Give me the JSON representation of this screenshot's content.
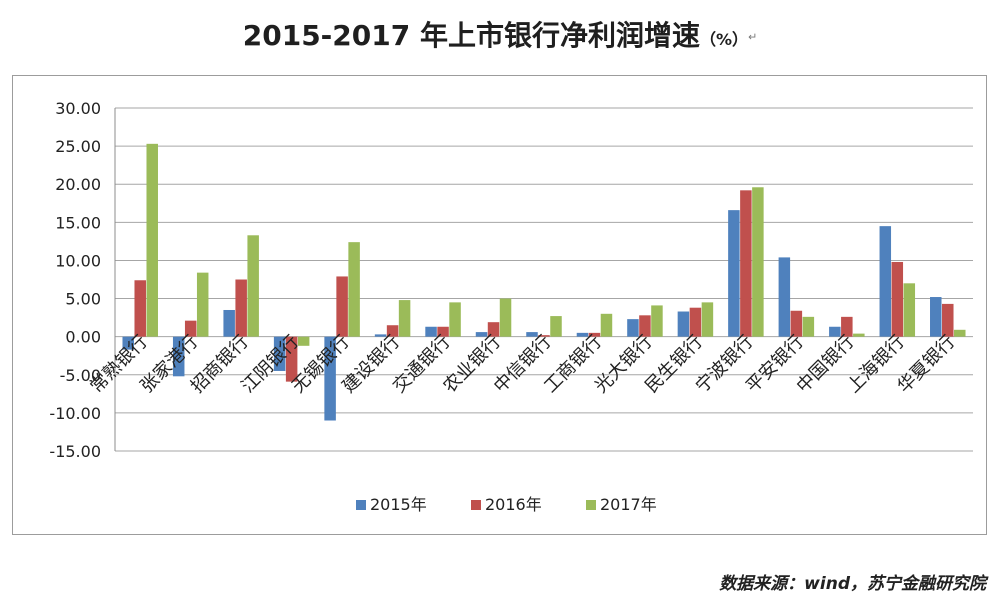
{
  "title": {
    "main": "2015-2017 年上市银行净利润增速",
    "unit": "（%）",
    "mark": "↵"
  },
  "source": "数据来源：wind，苏宁金融研究院",
  "chart_data": {
    "type": "bar",
    "categories": [
      "常熟银行",
      "张家港行",
      "招商银行",
      "江阴银行",
      "无锡银行",
      "建设银行",
      "交通银行",
      "农业银行",
      "中信银行",
      "工商银行",
      "光大银行",
      "民生银行",
      "宁波银行",
      "平安银行",
      "中国银行",
      "上海银行",
      "华夏银行"
    ],
    "series": [
      {
        "name": "2015年",
        "color": "#4f81bd",
        "values": [
          -1.7,
          -5.2,
          3.5,
          -4.5,
          -11.0,
          0.3,
          1.3,
          0.6,
          0.6,
          0.5,
          2.3,
          3.3,
          16.6,
          10.4,
          1.3,
          14.5,
          5.2
        ]
      },
      {
        "name": "2016年",
        "color": "#c0504d",
        "values": [
          7.4,
          2.1,
          7.5,
          -5.9,
          7.9,
          1.5,
          1.3,
          1.9,
          0.2,
          0.5,
          2.8,
          3.8,
          19.2,
          3.4,
          2.6,
          9.8,
          4.3
        ]
      },
      {
        "name": "2017年",
        "color": "#9bbb59",
        "values": [
          25.3,
          8.4,
          13.3,
          -1.2,
          12.4,
          4.8,
          4.5,
          5.0,
          2.7,
          3.0,
          4.1,
          4.5,
          19.6,
          2.6,
          0.4,
          7.0,
          0.9
        ]
      }
    ],
    "ylim": [
      -15,
      30
    ],
    "yticks": [
      30,
      25,
      20,
      15,
      10,
      5,
      0,
      -5,
      -10,
      -15
    ],
    "ytick_labels": [
      "30.00",
      "25.00",
      "20.00",
      "15.00",
      "10.00",
      "5.00",
      "0.00",
      "-5.00",
      "-10.00",
      "-15.00"
    ],
    "grid": true,
    "legend_position": "bottom"
  }
}
